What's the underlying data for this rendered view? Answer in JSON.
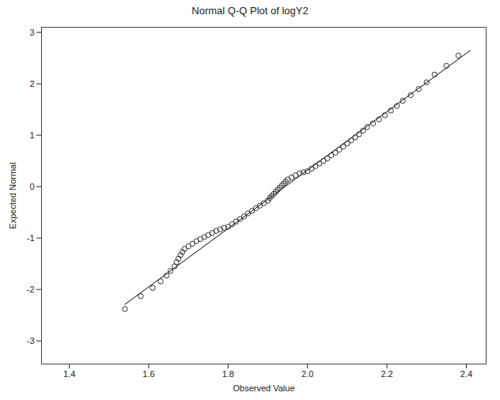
{
  "chart_data": {
    "type": "scatter",
    "title": "Normal Q-Q Plot of logY2",
    "x_label": "Observed Value",
    "y_label": "Expected Normal",
    "xlim": [
      1.33,
      2.45
    ],
    "ylim": [
      -3.45,
      3.1
    ],
    "xticks": [
      1.4,
      1.6,
      1.8,
      {
        "value": 2.0,
        "label": "2.0"
      },
      2.2,
      2.4
    ],
    "yticks": [
      -3,
      -2,
      -1,
      0,
      1,
      2,
      3
    ],
    "grid": false,
    "marker": "circle",
    "color": "#333333",
    "x": [
      1.54,
      1.58,
      1.61,
      1.63,
      1.645,
      1.655,
      1.665,
      1.67,
      1.675,
      1.68,
      1.685,
      1.69,
      1.7,
      1.71,
      1.72,
      1.73,
      1.74,
      1.75,
      1.76,
      1.77,
      1.78,
      1.79,
      1.8,
      1.81,
      1.82,
      1.83,
      1.84,
      1.85,
      1.86,
      1.87,
      1.88,
      1.89,
      1.9,
      1.905,
      1.91,
      1.915,
      1.92,
      1.925,
      1.93,
      1.935,
      1.94,
      1.945,
      1.95,
      1.96,
      1.97,
      1.98,
      1.99,
      2.0,
      2.01,
      2.02,
      2.03,
      2.04,
      2.05,
      2.06,
      2.07,
      2.08,
      2.09,
      2.1,
      2.11,
      2.12,
      2.13,
      2.14,
      2.15,
      2.165,
      2.18,
      2.195,
      2.21,
      2.225,
      2.24,
      2.26,
      2.28,
      2.3,
      2.32,
      2.35,
      2.38
    ],
    "y": [
      -2.38,
      -2.13,
      -1.97,
      -1.84,
      -1.73,
      -1.64,
      -1.55,
      -1.47,
      -1.4,
      -1.33,
      -1.27,
      -1.21,
      -1.16,
      -1.11,
      -1.06,
      -1.02,
      -0.98,
      -0.94,
      -0.9,
      -0.86,
      -0.83,
      -0.8,
      -0.78,
      -0.73,
      -0.68,
      -0.63,
      -0.58,
      -0.52,
      -0.47,
      -0.42,
      -0.37,
      -0.32,
      -0.27,
      -0.22,
      -0.18,
      -0.14,
      -0.1,
      -0.06,
      -0.02,
      0.02,
      0.06,
      0.1,
      0.14,
      0.18,
      0.22,
      0.26,
      0.28,
      0.3,
      0.35,
      0.4,
      0.45,
      0.5,
      0.55,
      0.61,
      0.66,
      0.72,
      0.78,
      0.84,
      0.9,
      0.96,
      1.02,
      1.09,
      1.16,
      1.23,
      1.31,
      1.39,
      1.48,
      1.57,
      1.67,
      1.78,
      1.9,
      2.03,
      2.18,
      2.35,
      2.55
    ],
    "reference_line": {
      "x": [
        1.54,
        2.41
      ],
      "y": [
        -2.29,
        2.65
      ],
      "color": "#000000",
      "line_style": "solid"
    }
  }
}
